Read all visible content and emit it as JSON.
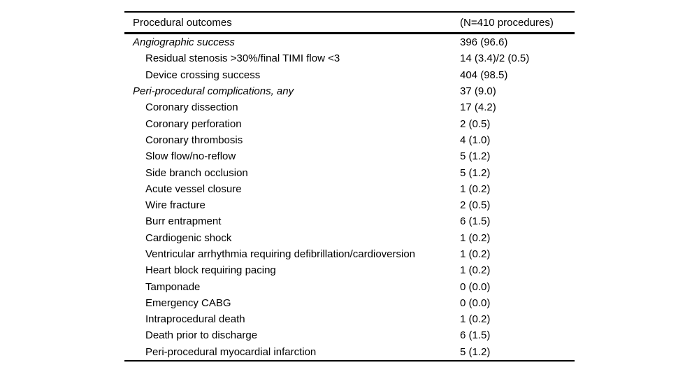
{
  "colors": {
    "background": "#ffffff",
    "text": "#000000",
    "rule": "#000000"
  },
  "table": {
    "header": {
      "label": "Procedural outcomes",
      "value": "(N=410 procedures)"
    },
    "rows": [
      {
        "style": "section",
        "label": "Angiographic success",
        "value": "396 (96.6)"
      },
      {
        "style": "sub",
        "label": "Residual stenosis >30%/final TIMI flow <3",
        "value": "14 (3.4)/2 (0.5)"
      },
      {
        "style": "sub",
        "label": "Device crossing success",
        "value": "404 (98.5)"
      },
      {
        "style": "section",
        "label": "Peri-procedural complications, any",
        "value": "37 (9.0)"
      },
      {
        "style": "sub",
        "label": "Coronary dissection",
        "value": "17 (4.2)"
      },
      {
        "style": "sub",
        "label": "Coronary perforation",
        "value": "2 (0.5)"
      },
      {
        "style": "sub",
        "label": "Coronary thrombosis",
        "value": "4 (1.0)"
      },
      {
        "style": "sub",
        "label": "Slow flow/no-reflow",
        "value": "5 (1.2)"
      },
      {
        "style": "sub",
        "label": "Side branch occlusion",
        "value": "5 (1.2)"
      },
      {
        "style": "sub",
        "label": "Acute vessel closure",
        "value": "1 (0.2)"
      },
      {
        "style": "sub",
        "label": "Wire fracture",
        "value": "2 (0.5)"
      },
      {
        "style": "sub",
        "label": "Burr entrapment",
        "value": "6 (1.5)"
      },
      {
        "style": "sub",
        "label": "Cardiogenic shock",
        "value": "1 (0.2)"
      },
      {
        "style": "sub",
        "label": "Ventricular arrhythmia requiring defibrillation/cardioversion",
        "value": "1 (0.2)"
      },
      {
        "style": "sub",
        "label": "Heart block requiring pacing",
        "value": "1 (0.2)"
      },
      {
        "style": "sub",
        "label": "Tamponade",
        "value": "0 (0.0)"
      },
      {
        "style": "sub",
        "label": "Emergency CABG",
        "value": "0 (0.0)"
      },
      {
        "style": "sub",
        "label": "Intraprocedural death",
        "value": "1 (0.2)"
      },
      {
        "style": "sub",
        "label": "Death prior to discharge",
        "value": "6 (1.5)"
      },
      {
        "style": "sub",
        "label": "Peri-procedural myocardial infarction",
        "value": "5 (1.2)"
      }
    ]
  }
}
